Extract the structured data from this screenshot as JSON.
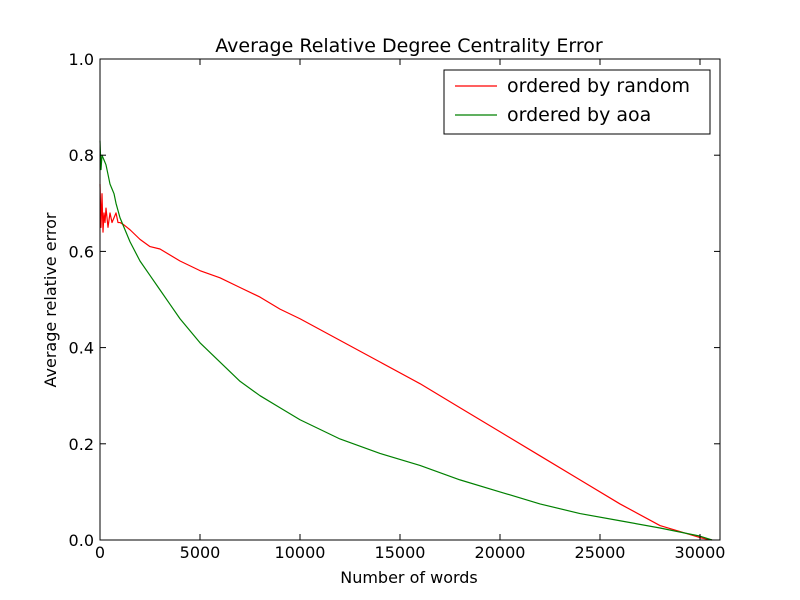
{
  "chart_data": {
    "type": "line",
    "title": "Average Relative Degree Centrality Error",
    "xlabel": "Number of words",
    "ylabel": "Average relative error",
    "xlim": [
      0,
      31000
    ],
    "ylim": [
      0.0,
      1.0
    ],
    "x_ticks": [
      0,
      5000,
      10000,
      15000,
      20000,
      25000,
      30000
    ],
    "x_tick_labels": [
      "0",
      "5000",
      "10000",
      "15000",
      "20000",
      "25000",
      "30000"
    ],
    "y_ticks": [
      0.0,
      0.2,
      0.4,
      0.6,
      0.8,
      1.0
    ],
    "y_tick_labels": [
      "0.0",
      "0.2",
      "0.4",
      "0.6",
      "0.8",
      "1.0"
    ],
    "legend_position": "top-right",
    "series": [
      {
        "name": "ordered by random",
        "color": "#ff0000",
        "x": [
          0,
          50,
          100,
          150,
          200,
          250,
          300,
          400,
          500,
          600,
          700,
          800,
          900,
          1000,
          1200,
          1500,
          2000,
          2500,
          3000,
          4000,
          5000,
          6000,
          7000,
          8000,
          9000,
          10000,
          12000,
          14000,
          16000,
          18000,
          20000,
          22000,
          24000,
          26000,
          28000,
          30000,
          30600
        ],
        "values": [
          0.74,
          0.65,
          0.72,
          0.64,
          0.68,
          0.66,
          0.69,
          0.65,
          0.68,
          0.66,
          0.67,
          0.68,
          0.66,
          0.66,
          0.655,
          0.645,
          0.625,
          0.61,
          0.605,
          0.58,
          0.56,
          0.545,
          0.525,
          0.505,
          0.48,
          0.46,
          0.415,
          0.37,
          0.325,
          0.275,
          0.225,
          0.175,
          0.125,
          0.075,
          0.03,
          0.005,
          0.0
        ]
      },
      {
        "name": "ordered by aoa",
        "color": "#008000",
        "x": [
          0,
          50,
          100,
          200,
          300,
          400,
          500,
          600,
          700,
          800,
          1000,
          1200,
          1500,
          2000,
          2500,
          3000,
          3500,
          4000,
          5000,
          6000,
          7000,
          8000,
          9000,
          10000,
          12000,
          14000,
          16000,
          18000,
          20000,
          22000,
          24000,
          26000,
          28000,
          30000,
          30600
        ],
        "values": [
          0.83,
          0.77,
          0.8,
          0.79,
          0.78,
          0.76,
          0.74,
          0.73,
          0.72,
          0.7,
          0.67,
          0.65,
          0.62,
          0.58,
          0.55,
          0.52,
          0.49,
          0.46,
          0.41,
          0.37,
          0.33,
          0.3,
          0.275,
          0.25,
          0.21,
          0.18,
          0.155,
          0.125,
          0.1,
          0.075,
          0.055,
          0.04,
          0.025,
          0.008,
          0.0
        ]
      }
    ]
  }
}
